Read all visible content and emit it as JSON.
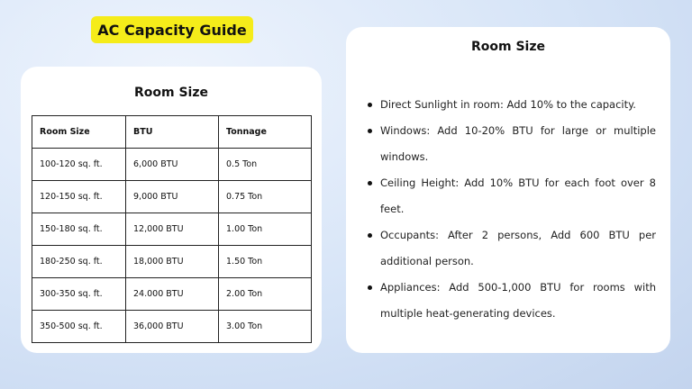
{
  "title": "AC Capacity Guide",
  "left_card": {
    "heading": "Room Size",
    "columns": [
      "Room Size",
      "BTU",
      "Tonnage"
    ],
    "rows": [
      [
        "100-120 sq. ft.",
        "6,000 BTU",
        "0.5 Ton"
      ],
      [
        "120-150 sq. ft.",
        "9,000 BTU",
        "0.75 Ton"
      ],
      [
        "150-180 sq. ft.",
        "12,000 BTU",
        "1.00 Ton"
      ],
      [
        "180-250 sq. ft.",
        "18,000 BTU",
        "1.50 Ton"
      ],
      [
        "300-350 sq. ft.",
        "24.000 BTU",
        "2.00 Ton"
      ],
      [
        "350-500 sq. ft.",
        "36,000 BTU",
        "3.00 Ton"
      ]
    ]
  },
  "right_card": {
    "heading": "Room Size",
    "items": [
      "Direct Sunlight in room: Add 10% to the capacity.",
      "Windows: Add 10-20% BTU for large or multiple windows.",
      "Ceiling Height: Add 10% BTU for each foot over 8 feet.",
      "Occupants: After 2 persons, Add 600 BTU per additional person.",
      "Appliances: Add 500-1,000 BTU for rooms with multiple heat-generating devices."
    ]
  }
}
